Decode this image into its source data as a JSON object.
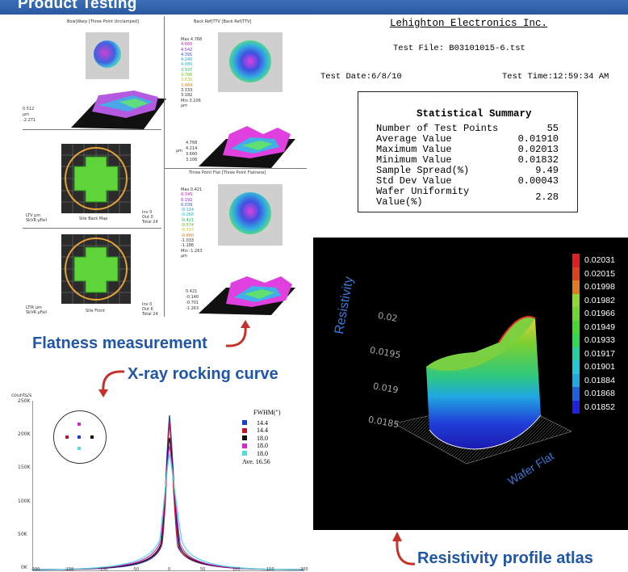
{
  "header": {
    "title": "Product Testing"
  },
  "flatness": {
    "bow_warp_title": "Bow|Warp [Three Point Unclamped]",
    "back_ref_title": "Back Ref|TTV [Back Ref|TTV]",
    "three_point_title": "Three Point Flat [Three Point Flatness]",
    "bow_scale": [
      "0.512",
      "μm",
      "-2.271"
    ],
    "back_ref_scale": [
      "Max 4.768",
      "4.665",
      "4.542",
      "4.391",
      "4.240",
      "4.086",
      "3.937",
      "3.786",
      "3.635",
      "3.484",
      "3.333",
      "3.182",
      "Min 3.106",
      "μm"
    ],
    "back_ref_side": [
      "4.768",
      "4.214",
      "3.660",
      "3.106"
    ],
    "back_ref_side_unit": "μm",
    "three_point_scale": [
      "Max 0.421",
      "0.345",
      "0.192",
      "0.039",
      "-0.114",
      "-0.268",
      "-0.421",
      "-0.574",
      "-0.727",
      "-0.880",
      "-1.033",
      "-1.186",
      "Min -1.263",
      "μm"
    ],
    "three_point_side": [
      "0.421",
      "-0.140",
      "-0.701",
      "-1.263"
    ],
    "site_back_map_label": "Site Back Map",
    "site_front_label": "Site Front",
    "ltv_label": "LTV μm\nSkVR μFail",
    "ltv_right": "Inv 0\nOut 0\nTotal 24",
    "ltir_label": "LTIR μm\nSkVR μFail",
    "ltir_right": "Inv 0\nOut 6\nTotal 24",
    "caption": "Flatness measurement"
  },
  "report": {
    "company": "Lehighton Electronics Inc.",
    "test_file": "Test File: B03101015-6.tst",
    "test_date": "Test Date:6/8/10",
    "test_time": "Test Time:12:59:34 AM",
    "summary_title": "Statistical Summary",
    "rows": [
      {
        "label": "Number of Test Points",
        "value": "55"
      },
      {
        "label": "Average Value",
        "value": "0.01910"
      },
      {
        "label": "Maximum Value",
        "value": "0.02013"
      },
      {
        "label": "Minimum Value",
        "value": "0.01832"
      },
      {
        "label": "Sample Spread(%)",
        "value": "9.49"
      },
      {
        "label": "Std Dev Value",
        "value": "0.00043"
      },
      {
        "label": "Wafer Uniformity Value(%)",
        "value": "2.28"
      }
    ]
  },
  "xray": {
    "caption": "X-ray rocking curve",
    "y_unit": "counts/s",
    "y_ticks": [
      "250K",
      "200K",
      "150K",
      "100K",
      "50K",
      "0K"
    ],
    "x_ticks": [
      "-200",
      "-150",
      "-100",
      "-50",
      "0",
      "50",
      "100",
      "150",
      "200"
    ],
    "legend_title": "FWHM(\")",
    "legend": [
      {
        "value": "14.4",
        "color": "#1c3fd6"
      },
      {
        "value": "14.4",
        "color": "#c0142b"
      },
      {
        "value": "18.0",
        "color": "#111111"
      },
      {
        "value": "18.0",
        "color": "#d12ad1"
      },
      {
        "value": "18.0",
        "color": "#53dde0"
      }
    ],
    "average": "Ave. 16.56"
  },
  "resistivity": {
    "caption": "Resistivity profile atlas",
    "axis_label": "Resistivity",
    "flat_label": "Wafer Flat",
    "z_ticks": [
      "0.02",
      "0.0195",
      "0.019",
      "0.0185"
    ],
    "legend": [
      {
        "value": "0.02031",
        "color": "#e02020"
      },
      {
        "value": "0.02015",
        "color": "#e04020"
      },
      {
        "value": "0.01998",
        "color": "#e07a20"
      },
      {
        "value": "0.01982",
        "color": "#8fd830"
      },
      {
        "value": "0.01966",
        "color": "#6cd830"
      },
      {
        "value": "0.01949",
        "color": "#44d830"
      },
      {
        "value": "0.01933",
        "color": "#2ed850"
      },
      {
        "value": "0.01917",
        "color": "#20d0a0"
      },
      {
        "value": "0.01901",
        "color": "#20c8d8"
      },
      {
        "value": "0.01884",
        "color": "#20a8e0"
      },
      {
        "value": "0.01868",
        "color": "#2060e0"
      },
      {
        "value": "0.01852",
        "color": "#2020e0"
      }
    ]
  }
}
